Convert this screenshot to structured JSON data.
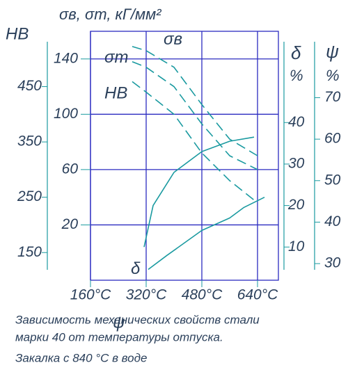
{
  "chart_data": {
    "type": "line",
    "title": "σв, σт, кГ/мм²",
    "hb_label": "НВ",
    "delta_label": "δ",
    "delta_unit": "%",
    "psi_label": "ψ",
    "psi_unit": "%",
    "xlim": [
      160,
      700
    ],
    "xticks": [
      {
        "value": 160,
        "label": "160°С"
      },
      {
        "value": 320,
        "label": "320°С"
      },
      {
        "value": 480,
        "label": "480°С"
      },
      {
        "value": 640,
        "label": "640°С"
      }
    ],
    "ylim": [
      -20,
      160
    ],
    "yticks": [
      20,
      60,
      100,
      140
    ],
    "hb_lim": [
      100,
      550
    ],
    "hb_ticks": [
      150,
      250,
      350,
      450
    ],
    "delta_lim": [
      2,
      62
    ],
    "delta_ticks": [
      10,
      20,
      30,
      40
    ],
    "psi_lim": [
      26,
      86
    ],
    "psi_ticks": [
      30,
      40,
      50,
      60,
      70
    ],
    "grid": true,
    "grid_color": "#2b2bc0",
    "series": [
      {
        "name": "σв",
        "axis": "y",
        "dashed": true,
        "color": "#1a9aa0",
        "x": [
          280,
          320,
          400,
          480,
          560,
          640
        ],
        "values": [
          149,
          146,
          134,
          107,
          82,
          70
        ]
      },
      {
        "name": "σт",
        "axis": "y",
        "dashed": true,
        "color": "#1a9aa0",
        "x": [
          280,
          320,
          400,
          480,
          560,
          640
        ],
        "values": [
          138,
          134,
          120,
          93,
          70,
          60
        ]
      },
      {
        "name": "НВ",
        "axis": "hb",
        "dashed": true,
        "color": "#1a9aa0",
        "x": [
          280,
          320,
          400,
          480,
          560,
          640
        ],
        "values": [
          459,
          440,
          400,
          330,
          280,
          240
        ]
      },
      {
        "name": "ψ",
        "axis": "psi",
        "dashed": false,
        "color": "#1a9aa0",
        "x": [
          314,
          340,
          400,
          480,
          560,
          630
        ],
        "values": [
          34,
          44,
          52,
          57,
          59.5,
          60.5
        ]
      },
      {
        "name": "δ",
        "axis": "delta",
        "dashed": false,
        "color": "#1a9aa0",
        "x": [
          326,
          380,
          480,
          560,
          600,
          660
        ],
        "values": [
          4.6,
          8,
          14,
          17,
          19.5,
          22
        ]
      }
    ],
    "caption": [
      "Зависимость механических свойств стали",
      "марки 40 от температуры отпуска.",
      "Закалка с 840 °С в воде"
    ]
  }
}
